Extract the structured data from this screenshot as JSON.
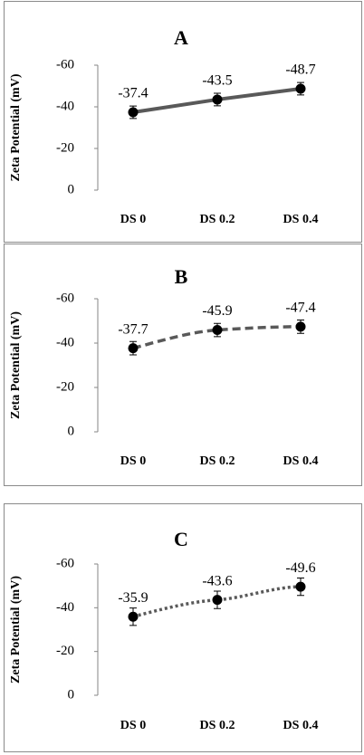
{
  "chart_data": [
    {
      "type": "line",
      "title": "A",
      "y_label": "Zeta Potential (mV)",
      "categories": [
        "DS 0",
        "DS 0.2",
        "DS 0.4"
      ],
      "values": [
        -37.4,
        -43.5,
        -48.7
      ],
      "errors": [
        3,
        3,
        3
      ],
      "color": "#595959",
      "line_style": "solid",
      "ylim": [
        0,
        -60
      ],
      "yticks": [
        0,
        -20,
        -40,
        -60
      ]
    },
    {
      "type": "line",
      "title": "B",
      "y_label": "Zeta Potential (mV)",
      "categories": [
        "DS 0",
        "DS 0.2",
        "DS 0.4"
      ],
      "values": [
        -37.7,
        -45.9,
        -47.4
      ],
      "errors": [
        3,
        3,
        3
      ],
      "color": "#595959",
      "line_style": "dashed",
      "ylim": [
        0,
        -60
      ],
      "yticks": [
        0,
        -20,
        -40,
        -60
      ]
    },
    {
      "type": "line",
      "title": "C",
      "y_label": "Zeta Potential (mV)",
      "categories": [
        "DS 0",
        "DS 0.2",
        "DS 0.4"
      ],
      "values": [
        -35.9,
        -43.6,
        -49.6
      ],
      "errors": [
        4,
        4,
        4
      ],
      "color": "#595959",
      "line_style": "dotted",
      "ylim": [
        0,
        -60
      ],
      "yticks": [
        0,
        -20,
        -40,
        -60
      ]
    }
  ]
}
